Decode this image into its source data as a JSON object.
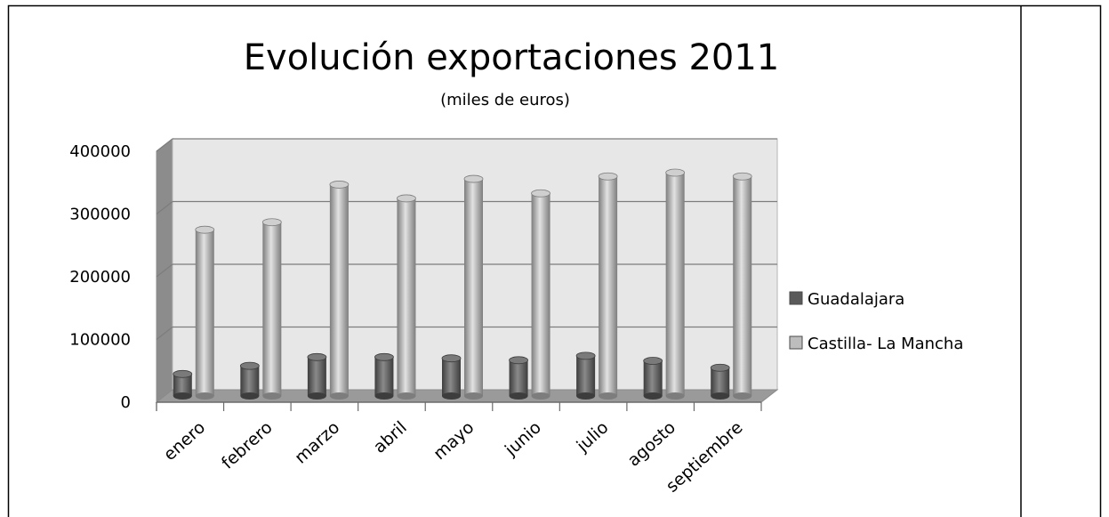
{
  "chart_data": {
    "type": "bar",
    "title": "Evolución exportaciones 2011",
    "subtitle": "(miles de euros)",
    "xlabel": "",
    "ylabel": "",
    "categories": [
      "enero",
      "febrero",
      "marzo",
      "abril",
      "mayo",
      "junio",
      "julio",
      "agosto",
      "septiembre"
    ],
    "series": [
      {
        "name": "Guadalajara",
        "color": "#5f5f5f",
        "values": [
          35000,
          48000,
          62000,
          62000,
          60000,
          57000,
          64000,
          56000,
          45000
        ]
      },
      {
        "name": "Castilla- La Mancha",
        "color": "#b3b3b3",
        "values": [
          265000,
          277000,
          337000,
          315000,
          346000,
          323000,
          350000,
          356000,
          350000
        ]
      }
    ],
    "yticks": [
      "0",
      "100000",
      "200000",
      "300000",
      "400000"
    ],
    "ylim": [
      0,
      400000
    ],
    "grid": true,
    "legend_position": "right",
    "style": "3d-cylinder"
  }
}
